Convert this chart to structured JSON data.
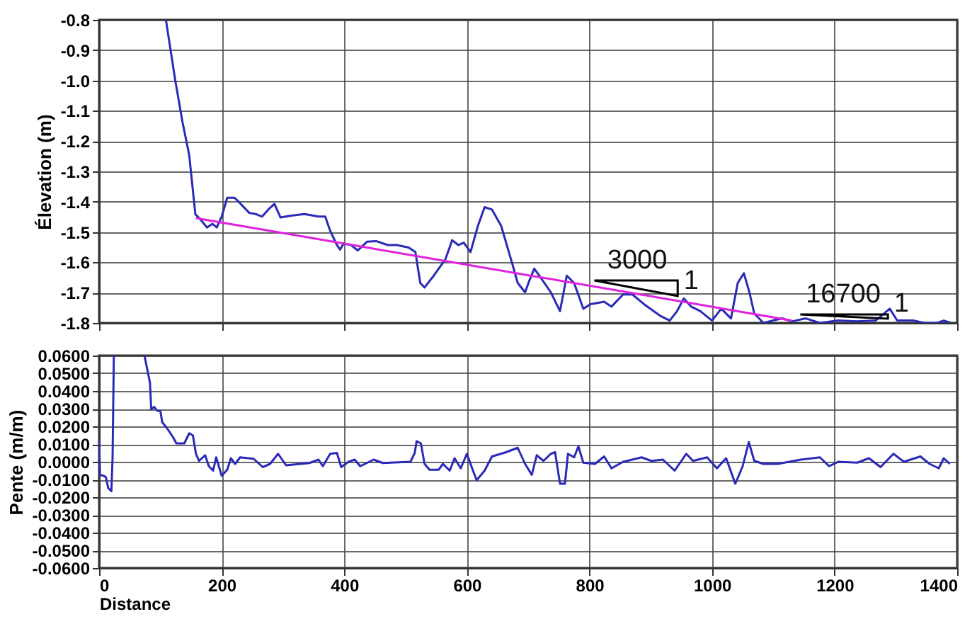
{
  "chart_data": [
    {
      "type": "line",
      "ylabel": "Élevation (m)",
      "xlim": [
        0,
        1400
      ],
      "xticks": [
        0,
        200,
        400,
        600,
        800,
        1000,
        1200,
        1400
      ],
      "ylim": [
        -1.8,
        -0.8
      ],
      "yticks": [
        {
          "value": -0.8,
          "label": "-0.8"
        },
        {
          "value": -0.9,
          "label": "-0.9"
        },
        {
          "value": -1,
          "label": "-1.0"
        },
        {
          "value": -1.1,
          "label": "-1.1"
        },
        {
          "value": -1.2,
          "label": "-1.2"
        },
        {
          "value": -1.3,
          "label": "-1.3"
        },
        {
          "value": -1.4,
          "label": "-1.4"
        },
        {
          "value": -1.5,
          "label": "-1.5"
        },
        {
          "value": -1.6,
          "label": "-1.6"
        },
        {
          "value": -1.7,
          "label": "-1.7"
        },
        {
          "value": -1.8,
          "label": "-1.8"
        }
      ],
      "tick_labels": "y",
      "grid": true,
      "series": [
        {
          "color": "#2a2ab8",
          "x": [
            109,
            124,
            136,
            147,
            157,
            166,
            176,
            185,
            192,
            200,
            209,
            221,
            230,
            245,
            256,
            266,
            276,
            286,
            296,
            313,
            335,
            358,
            369,
            377,
            388,
            393,
            399,
            411,
            422,
            437,
            452,
            471,
            486,
            505,
            516,
            524,
            531,
            546,
            565,
            576,
            586,
            595,
            606,
            618,
            629,
            641,
            656,
            672,
            683,
            695,
            702,
            710,
            721,
            737,
            752,
            763,
            775,
            790,
            802,
            824,
            836,
            855,
            870,
            889,
            916,
            931,
            943,
            954,
            966,
            981,
            1000,
            1015,
            1031,
            1042,
            1052,
            1061,
            1069,
            1084,
            1099,
            1115,
            1130,
            1153,
            1176,
            1206,
            1237,
            1267,
            1290,
            1302,
            1328,
            1347,
            1367,
            1378,
            1390
          ],
          "values": [
            -0.8,
            -0.997,
            -1.137,
            -1.246,
            -1.441,
            -1.46,
            -1.485,
            -1.473,
            -1.485,
            -1.449,
            -1.387,
            -1.387,
            -1.405,
            -1.437,
            -1.441,
            -1.449,
            -1.426,
            -1.407,
            -1.452,
            -1.446,
            -1.441,
            -1.449,
            -1.449,
            -1.496,
            -1.543,
            -1.558,
            -1.538,
            -1.543,
            -1.561,
            -1.532,
            -1.53,
            -1.543,
            -1.543,
            -1.551,
            -1.566,
            -1.668,
            -1.683,
            -1.644,
            -1.59,
            -1.527,
            -1.543,
            -1.535,
            -1.566,
            -1.48,
            -1.418,
            -1.426,
            -1.48,
            -1.59,
            -1.668,
            -1.699,
            -1.66,
            -1.621,
            -1.652,
            -1.699,
            -1.761,
            -1.644,
            -1.668,
            -1.753,
            -1.738,
            -1.73,
            -1.746,
            -1.706,
            -1.706,
            -1.738,
            -1.777,
            -1.792,
            -1.761,
            -1.719,
            -1.746,
            -1.761,
            -1.792,
            -1.753,
            -1.785,
            -1.668,
            -1.636,
            -1.699,
            -1.769,
            -1.8,
            -1.792,
            -1.785,
            -1.795,
            -1.785,
            -1.8,
            -1.792,
            -1.795,
            -1.792,
            -1.753,
            -1.792,
            -1.792,
            -1.8,
            -1.8,
            -1.792,
            -1.8
          ]
        },
        {
          "type": "line",
          "color": "#e020e0",
          "x": [
            158,
            1130
          ],
          "values": [
            -1.454,
            -1.792
          ]
        }
      ],
      "annotations": [
        "3000",
        "1",
        "16700",
        "1"
      ]
    },
    {
      "type": "line",
      "ylabel": "Pente (m/m)",
      "xlabel": "Distance",
      "xlim": [
        0,
        1400
      ],
      "xticks": [
        0,
        200,
        400,
        600,
        800,
        1000,
        1200,
        1400
      ],
      "ylim": [
        -0.06,
        0.06
      ],
      "yticks": [
        {
          "value": 0.06,
          "label": "0.0600"
        },
        {
          "value": 0.05,
          "label": "0.0500"
        },
        {
          "value": 0.04,
          "label": "0.0400"
        },
        {
          "value": 0.03,
          "label": "0.0300"
        },
        {
          "value": 0.02,
          "label": "0.0200"
        },
        {
          "value": 0.01,
          "label": "0.0100"
        },
        {
          "value": 0,
          "label": "0.0000"
        },
        {
          "value": -0.01,
          "label": "-0.0100"
        },
        {
          "value": -0.02,
          "label": "-0.0200"
        },
        {
          "value": -0.03,
          "label": "-0.0300"
        },
        {
          "value": -0.04,
          "label": "-0.0400"
        },
        {
          "value": -0.05,
          "label": "-0.0500"
        },
        {
          "value": -0.06,
          "label": "-0.0600"
        }
      ],
      "grid": true,
      "series": [
        {
          "color": "#2a2ab8",
          "x": [
            0,
            1.5,
            8,
            11,
            15,
            20,
            22,
            24,
            49,
            74,
            83,
            85,
            90,
            94,
            100,
            103,
            109,
            115,
            121,
            126,
            139,
            147,
            153,
            158,
            163,
            173,
            179,
            186,
            191,
            200,
            209,
            215,
            222,
            230,
            252,
            267,
            279,
            292,
            305,
            343,
            358,
            365,
            377,
            388,
            395,
            407,
            417,
            426,
            448,
            463,
            508,
            515,
            518,
            525,
            531,
            539,
            554,
            561,
            572,
            580,
            590,
            600,
            610,
            616,
            629,
            641,
            664,
            683,
            695,
            706,
            714,
            725,
            737,
            744,
            752,
            760,
            765,
            775,
            782,
            790,
            809,
            824,
            836,
            855,
            870,
            885,
            901,
            920,
            939,
            958,
            969,
            992,
            1008,
            1023,
            1038,
            1050,
            1060,
            1069,
            1084,
            1107,
            1145,
            1176,
            1191,
            1206,
            1237,
            1256,
            1275,
            1296,
            1313,
            1340,
            1355,
            1370,
            1378,
            1388
          ],
          "values": [
            0.0124,
            -0.0074,
            -0.008,
            -0.0087,
            -0.0149,
            -0.0166,
            0.0025,
            0.06,
            null,
            0.06,
            0.0446,
            0.0297,
            0.031,
            0.029,
            0.0285,
            0.0223,
            0.0198,
            0.0168,
            0.0136,
            0.0104,
            0.0104,
            0.0161,
            0.0149,
            0.0045,
            0.0005,
            0.0037,
            -0.0025,
            -0.005,
            0.0025,
            -0.0079,
            -0.0045,
            0.002,
            -0.0012,
            0.0025,
            0.0017,
            -0.003,
            -0.0012,
            0.0045,
            -0.002,
            -0.0007,
            0.0012,
            -0.0025,
            0.0045,
            0.005,
            -0.003,
            0,
            0.0012,
            -0.0025,
            0.0012,
            -0.0007,
            0,
            0.005,
            0.0116,
            0.0104,
            -0.0012,
            -0.0045,
            -0.0045,
            -0.0012,
            -0.005,
            0.002,
            -0.0037,
            0.0045,
            -0.005,
            -0.0104,
            -0.005,
            0.003,
            0.0054,
            0.0079,
            -0.0012,
            -0.0074,
            0.0037,
            0.0005,
            0.0045,
            0.0054,
            -0.0124,
            -0.0124,
            0.0045,
            0.0025,
            0.0087,
            -0.0005,
            -0.0012,
            0.003,
            -0.0037,
            0,
            0.0012,
            0.0025,
            0.0005,
            0.0012,
            -0.005,
            0.0045,
            0.0005,
            0.0025,
            -0.0037,
            0.002,
            -0.0124,
            -0.0025,
            0.0111,
            0.0005,
            -0.0012,
            -0.0012,
            0.0012,
            0.0025,
            -0.0025,
            0,
            -0.0005,
            0.002,
            -0.003,
            0.0045,
            0,
            0.003,
            -0.0012,
            -0.0037,
            0.002,
            -0.0012
          ]
        }
      ]
    }
  ]
}
